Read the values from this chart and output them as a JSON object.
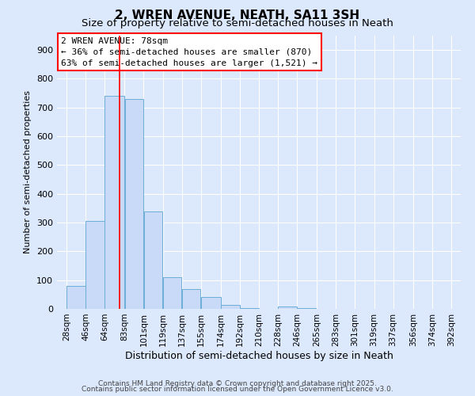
{
  "title": "2, WREN AVENUE, NEATH, SA11 3SH",
  "subtitle": "Size of property relative to semi-detached houses in Neath",
  "xlabel": "Distribution of semi-detached houses by size in Neath",
  "ylabel": "Number of semi-detached properties",
  "bar_left_edges": [
    28,
    46,
    64,
    83,
    101,
    119,
    137,
    155,
    174,
    192,
    210,
    228,
    246
  ],
  "bar_widths": [
    18,
    18,
    19,
    18,
    18,
    18,
    18,
    19,
    18,
    18,
    18,
    18,
    18
  ],
  "bar_heights": [
    80,
    307,
    742,
    730,
    340,
    110,
    68,
    40,
    13,
    2,
    1,
    8,
    3
  ],
  "bar_color": "#c9daf8",
  "bar_edgecolor": "#6baed6",
  "red_line_x": 78,
  "ylim": [
    0,
    950
  ],
  "yticks": [
    0,
    100,
    200,
    300,
    400,
    500,
    600,
    700,
    800,
    900
  ],
  "xlim": [
    19,
    401
  ],
  "xtick_labels": [
    "28sqm",
    "46sqm",
    "64sqm",
    "83sqm",
    "101sqm",
    "119sqm",
    "137sqm",
    "155sqm",
    "174sqm",
    "192sqm",
    "210sqm",
    "228sqm",
    "246sqm",
    "265sqm",
    "283sqm",
    "301sqm",
    "319sqm",
    "337sqm",
    "356sqm",
    "374sqm",
    "392sqm"
  ],
  "xtick_positions": [
    28,
    46,
    64,
    83,
    101,
    119,
    137,
    155,
    174,
    192,
    210,
    228,
    246,
    265,
    283,
    301,
    319,
    337,
    356,
    374,
    392
  ],
  "annotation_title": "2 WREN AVENUE: 78sqm",
  "annotation_line1": "← 36% of semi-detached houses are smaller (870)",
  "annotation_line2": "63% of semi-detached houses are larger (1,521) →",
  "footer_line1": "Contains HM Land Registry data © Crown copyright and database right 2025.",
  "footer_line2": "Contains public sector information licensed under the Open Government Licence v3.0.",
  "bg_color": "#dce8fb",
  "title_fontsize": 11,
  "subtitle_fontsize": 9.5,
  "annotation_fontsize": 8,
  "axis_fontsize": 8,
  "ylabel_fontsize": 8,
  "xlabel_fontsize": 9,
  "footer_fontsize": 6.5
}
